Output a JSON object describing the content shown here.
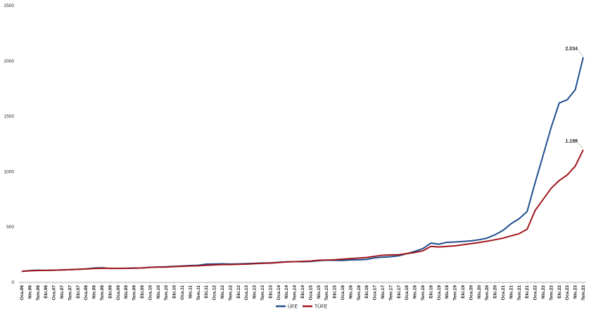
{
  "chart_data": {
    "type": "line",
    "categories": [
      "Oca.06",
      "Nis.06",
      "Tem.06",
      "Eki.06",
      "Oca.07",
      "Nis.07",
      "Tem.07",
      "Eki.07",
      "Oca.08",
      "Nis.08",
      "Tem.08",
      "Eki.08",
      "Oca.09",
      "Nis.09",
      "Tem.09",
      "Eki.09",
      "Oca.10",
      "Nis.10",
      "Tem.10",
      "Eki.10",
      "Oca.11",
      "Nis.11",
      "Tem.11",
      "Eki.11",
      "Oca.12",
      "Nis.12",
      "Tem.12",
      "Eki.12",
      "Oca.13",
      "Nis.13",
      "Tem.13",
      "Eki.13",
      "Oca.14",
      "Nis.14",
      "Tem.14",
      "Eki.14",
      "Oca.15",
      "Nis.15",
      "Tem.15",
      "Eki.15",
      "Oca.16",
      "Nis.16",
      "Tem.16",
      "Eki.16",
      "Oca.17",
      "Nis.17",
      "Tem.17",
      "Eki.17",
      "Oca.18",
      "Nis.18",
      "Tem.18",
      "Eki.18",
      "Oca.19",
      "Nis.19",
      "Tem.19",
      "Eki.19",
      "Oca.20",
      "Nis.20",
      "Tem.20",
      "Eki.20",
      "Oca.21",
      "Nis.21",
      "Tem.21",
      "Eki.21",
      "Oca.22",
      "Nis.22",
      "Tem.22",
      "Eki.22",
      "Oca.23",
      "Nis.23",
      "Tem.23"
    ],
    "series": [
      {
        "name": "ÜFE",
        "color": "#1f4e8c",
        "values": [
          100,
          107,
          110,
          109,
          110,
          113,
          115,
          118,
          122,
          130,
          132,
          126,
          127,
          128,
          130,
          131,
          136,
          140,
          141,
          145,
          148,
          152,
          155,
          165,
          166,
          168,
          166,
          167,
          170,
          172,
          175,
          176,
          182,
          186,
          187,
          187,
          189,
          196,
          201,
          199,
          198,
          203,
          204,
          208,
          222,
          228,
          232,
          240,
          260,
          280,
          305,
          355,
          345,
          362,
          365,
          370,
          375,
          385,
          400,
          430,
          470,
          530,
          575,
          640,
          900,
          1150,
          1400,
          1620,
          1650,
          1740,
          2034
        ],
        "value_labels": [
          null,
          null,
          null,
          null,
          null,
          null,
          null,
          null,
          null,
          null,
          null,
          null,
          null,
          null,
          null,
          null,
          null,
          null,
          null,
          null,
          null,
          null,
          null,
          null,
          null,
          null,
          null,
          null,
          null,
          null,
          null,
          null,
          null,
          null,
          null,
          null,
          null,
          null,
          null,
          null,
          null,
          null,
          null,
          null,
          null,
          null,
          null,
          null,
          null,
          null,
          null,
          null,
          null,
          null,
          null,
          null,
          null,
          null,
          null,
          null,
          null,
          null,
          null,
          null,
          null,
          null,
          null,
          null,
          null,
          null,
          "2.034"
        ]
      },
      {
        "name": "TÜFE",
        "color": "#a0161c",
        "values": [
          100,
          105,
          107,
          109,
          110,
          113,
          115,
          118,
          121,
          125,
          127,
          128,
          126,
          127,
          128,
          130,
          136,
          138,
          138,
          143,
          145,
          148,
          150,
          155,
          158,
          161,
          161,
          163,
          165,
          169,
          172,
          174,
          179,
          185,
          187,
          190,
          193,
          200,
          202,
          205,
          210,
          215,
          220,
          225,
          236,
          245,
          248,
          250,
          260,
          270,
          285,
          325,
          320,
          325,
          330,
          340,
          350,
          360,
          372,
          385,
          400,
          420,
          440,
          480,
          650,
          750,
          850,
          920,
          970,
          1050,
          1198
        ],
        "value_labels": [
          null,
          null,
          null,
          null,
          null,
          null,
          null,
          null,
          null,
          null,
          null,
          null,
          null,
          null,
          null,
          null,
          null,
          null,
          null,
          null,
          null,
          null,
          null,
          null,
          null,
          null,
          null,
          null,
          null,
          null,
          null,
          null,
          null,
          null,
          null,
          null,
          null,
          null,
          null,
          null,
          null,
          null,
          null,
          null,
          null,
          null,
          null,
          null,
          null,
          null,
          null,
          null,
          null,
          null,
          null,
          null,
          null,
          null,
          null,
          null,
          null,
          null,
          null,
          null,
          null,
          null,
          null,
          null,
          null,
          null,
          "1.198"
        ]
      }
    ],
    "ylim": [
      0,
      2500
    ],
    "yticks": [
      0,
      500,
      1000,
      1500,
      2000,
      2500
    ],
    "grid": false,
    "legend": "bottom"
  }
}
